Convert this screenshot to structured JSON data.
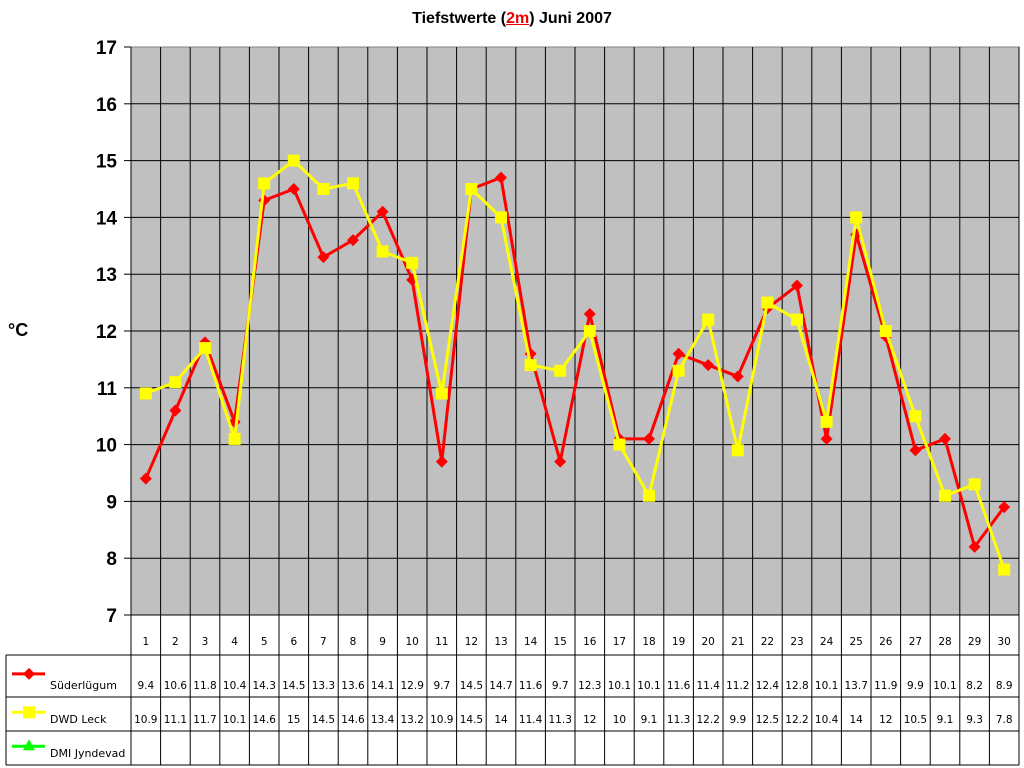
{
  "title": {
    "prefix": "Tiefstwerte (",
    "highlight": "2m",
    "suffix": ") Juni 2007"
  },
  "ylabel": "°C",
  "colors": {
    "plot_bg": "#C0C0C0",
    "grid": "#000000",
    "suederluegum": "#FF0000",
    "dwd_leck": "#FFFF00",
    "dmi_jyndevad": "#00FF00"
  },
  "chart_data": {
    "type": "line",
    "title": "Tiefstwerte (2m) Juni 2007",
    "xlabel": "",
    "ylabel": "°C",
    "ylim": [
      7,
      17
    ],
    "yticks": [
      7,
      8,
      9,
      10,
      11,
      12,
      13,
      14,
      15,
      16,
      17
    ],
    "grid": true,
    "legend_position": "data-table-left",
    "categories": [
      "1",
      "2",
      "3",
      "4",
      "5",
      "6",
      "7",
      "8",
      "9",
      "10",
      "11",
      "12",
      "13",
      "14",
      "15",
      "16",
      "17",
      "18",
      "19",
      "20",
      "21",
      "22",
      "23",
      "24",
      "25",
      "26",
      "27",
      "28",
      "29",
      "30"
    ],
    "series": [
      {
        "name": "Süderlügum",
        "color": "#FF0000",
        "marker": "diamond",
        "values": [
          9.4,
          10.6,
          11.8,
          10.4,
          14.3,
          14.5,
          13.3,
          13.6,
          14.1,
          12.9,
          9.7,
          14.5,
          14.7,
          11.6,
          9.7,
          12.3,
          10.1,
          10.1,
          11.6,
          11.4,
          11.2,
          12.4,
          12.8,
          10.1,
          13.7,
          11.9,
          9.9,
          10.1,
          8.2,
          8.9
        ]
      },
      {
        "name": "DWD Leck",
        "color": "#FFFF00",
        "marker": "square",
        "values": [
          10.9,
          11.1,
          11.7,
          10.1,
          14.6,
          15,
          14.5,
          14.6,
          13.4,
          13.2,
          10.9,
          14.5,
          14,
          11.4,
          11.3,
          12,
          10,
          9.1,
          11.3,
          12.2,
          9.9,
          12.5,
          12.2,
          10.4,
          14,
          12,
          10.5,
          9.1,
          9.3,
          7.8
        ]
      },
      {
        "name": "DMI Jyndevad",
        "color": "#00FF00",
        "marker": "triangle",
        "values": [
          null,
          null,
          null,
          null,
          null,
          null,
          null,
          null,
          null,
          null,
          null,
          null,
          null,
          null,
          null,
          null,
          null,
          null,
          null,
          null,
          null,
          null,
          null,
          null,
          null,
          null,
          null,
          null,
          null,
          null
        ]
      }
    ]
  }
}
